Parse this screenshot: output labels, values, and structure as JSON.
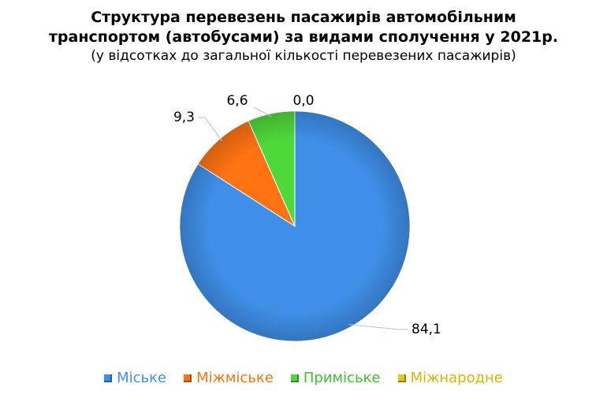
{
  "chart_data": {
    "type": "pie",
    "title_lines": [
      "Структура перевезень пасажирів автомобільним",
      "транспортом (автобусами) за видами сполучення у 2021р."
    ],
    "subtitle": "(у відсотках до загальної кількості перевезених пасажирів)",
    "categories": [
      "Міське",
      "Міжміське",
      "Приміське",
      "Міжнародне"
    ],
    "values": [
      84.1,
      9.3,
      6.6,
      0.0
    ],
    "value_labels": [
      "84,1",
      "9,3",
      "6,6",
      "0,0"
    ],
    "colors": [
      "#3f8fe8",
      "#ff7312",
      "#4fd83a",
      "#e8c817"
    ],
    "legend_text_colors": [
      "#3f8fe8",
      "#ff7312",
      "#3fc12e",
      "#d9b600"
    ],
    "legend_position": "bottom",
    "start_angle_deg": 0,
    "direction": "clockwise"
  }
}
